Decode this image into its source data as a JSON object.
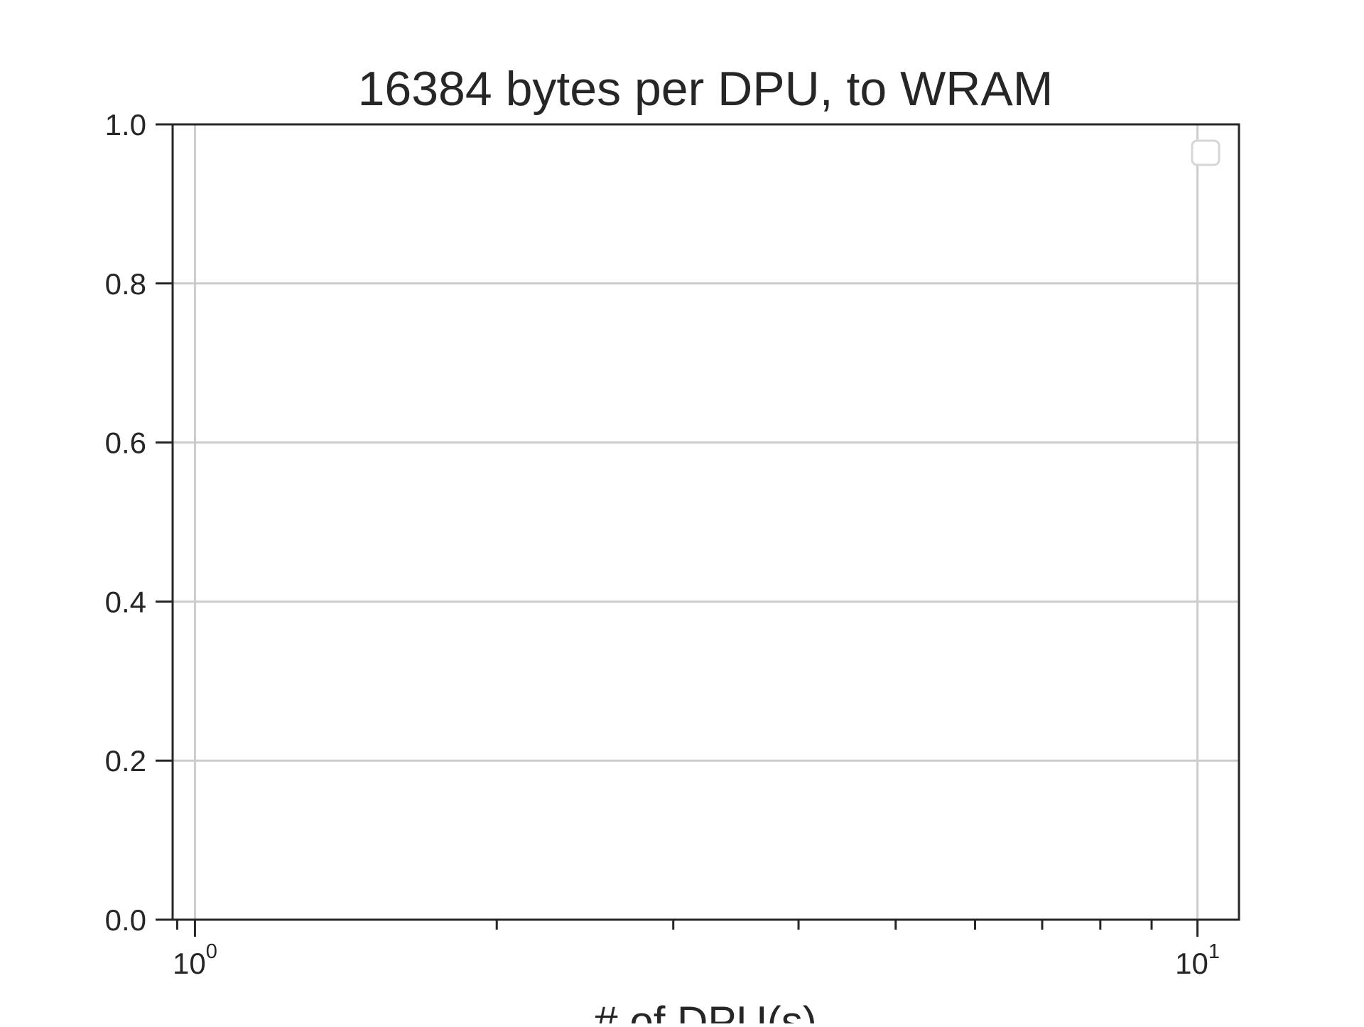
{
  "chart_data": {
    "type": "line",
    "title": "16384 bytes per DPU, to WRAM",
    "xlabel": "# of DPU(s)",
    "ylabel": "",
    "x_scale": "log",
    "xlim": [
      0.95,
      11.0
    ],
    "ylim": [
      0.0,
      1.0
    ],
    "x_major_ticks": [
      {
        "value": 1,
        "base": "10",
        "exp": "0"
      },
      {
        "value": 10,
        "base": "10",
        "exp": "1"
      }
    ],
    "x_minor_ticks": [
      2,
      3,
      4,
      5,
      6,
      7,
      8,
      9
    ],
    "y_ticks": [
      0.0,
      0.2,
      0.4,
      0.6,
      0.8,
      1.0
    ],
    "y_tick_labels": [
      "0.0",
      "0.2",
      "0.4",
      "0.6",
      "0.8",
      "1.0"
    ],
    "grid": true,
    "legend": {
      "placement": "top-right",
      "entries": []
    },
    "series": []
  },
  "colors": {
    "axis": "#262626",
    "grid": "#cccccc",
    "text": "#262626",
    "legend_border": "#d6d6d6"
  }
}
